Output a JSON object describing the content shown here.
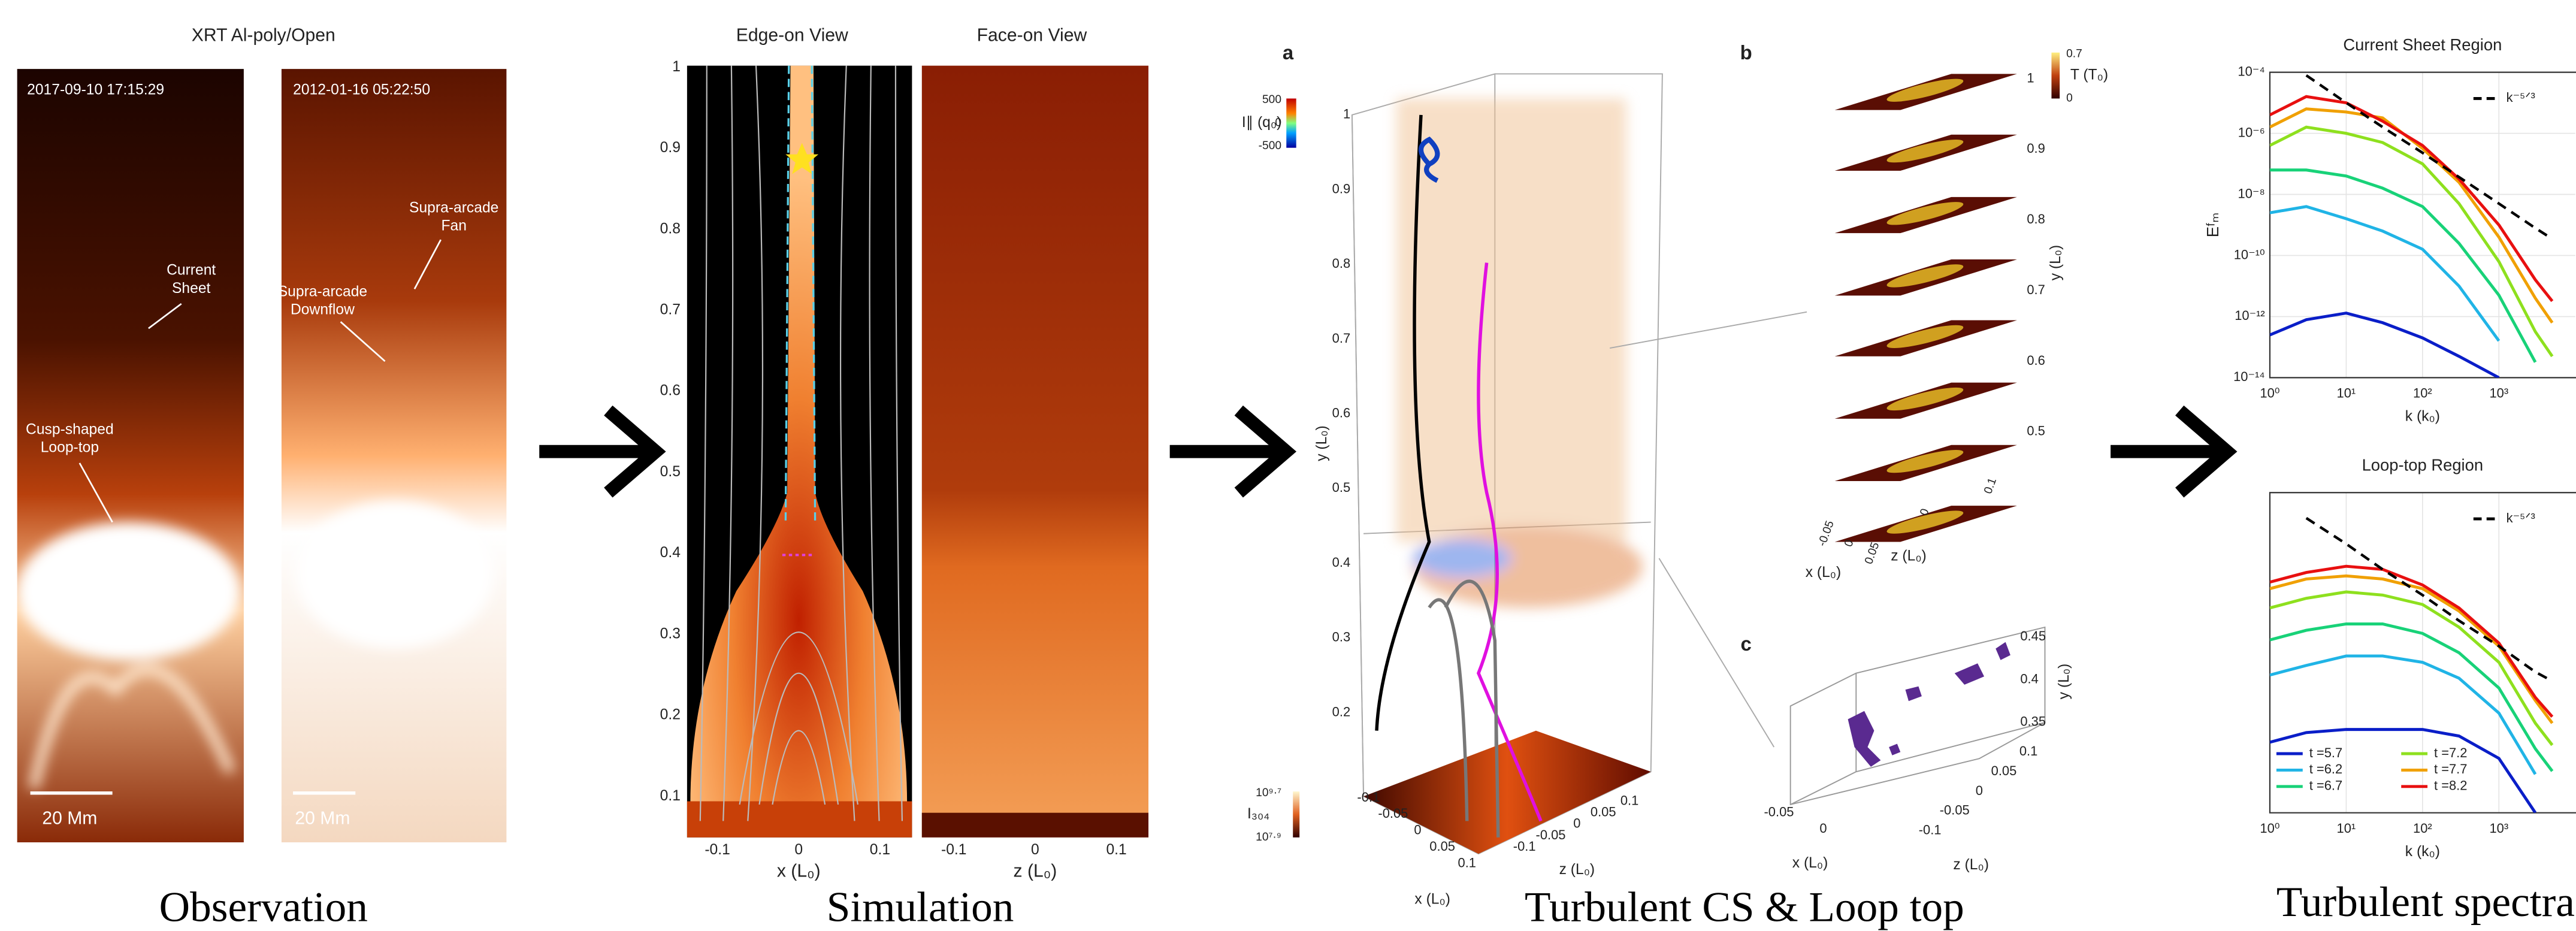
{
  "figure": {
    "observation": {
      "title": "XRT Al-poly/Open",
      "times": [
        "2017-09-10 17:15:29",
        "2012-01-16 05:22:50"
      ],
      "annotations": [
        [
          "Current",
          "Sheet"
        ],
        [
          "Cusp-shaped",
          "Loop-top"
        ],
        [
          "Supra-arcade",
          "Fan"
        ],
        [
          "Supra-arcade",
          "Downflow"
        ]
      ],
      "scale_bars": [
        "20 Mm",
        "20 Mm"
      ],
      "caption": "Observation"
    },
    "simulation": {
      "titles": [
        "Edge-on View",
        "Face-on View"
      ],
      "yticks": [
        0.1,
        0.2,
        0.3,
        0.4,
        0.5,
        0.6,
        0.7,
        0.8,
        0.9,
        1
      ],
      "xticks": [
        -0.1,
        0,
        0.1
      ],
      "xlabels": [
        "x (L₀)",
        "z (L₀)"
      ],
      "caption": "Simulation"
    },
    "turbulent": {
      "panel_labels": [
        "a",
        "b",
        "c"
      ],
      "a": {
        "colorbar_label": "I∥ (q₀)",
        "colorbar_ticks": [
          500,
          0,
          -500
        ],
        "colorbar2_label": "I₃₀₄",
        "colorbar2_ticks": [
          "10⁹·⁷",
          "10⁷·⁹"
        ],
        "yticks": [
          0.2,
          0.3,
          0.4,
          0.5,
          0.6,
          0.7,
          0.8,
          0.9,
          1
        ],
        "ylabel": "y (L₀)",
        "xticks": [
          -0.1,
          -0.05,
          0,
          0.05,
          0.1
        ],
        "xlabel": "x (L₀)",
        "zticks": [
          -0.1,
          -0.05,
          0,
          0.05,
          0.1
        ],
        "zlabel": "z (L₀)"
      },
      "b": {
        "colorbar_label": "T (T₀)",
        "colorbar_ticks": [
          0.7,
          0
        ],
        "yticks": [
          1,
          0.9,
          0.8,
          0.7,
          0.6,
          0.5
        ],
        "ylabel": "y (L₀)",
        "xticks": [
          -0.05,
          0,
          0.05
        ],
        "xlabel": "x (L₀)",
        "zticks": [
          0,
          0.1
        ],
        "zlabel": "z (L₀)"
      },
      "c": {
        "yticks": [
          0.45,
          0.4,
          0.35
        ],
        "ylabel": "y (L₀)",
        "xticks": [
          -0.05,
          0
        ],
        "xlabel": "x (L₀)",
        "zticks": [
          -0.1,
          -0.05,
          0,
          0.05,
          0.1
        ],
        "zlabel": "z (L₀)"
      },
      "caption": "Turbulent CS & Loop top"
    },
    "spectra_caption": "Turbulent spectra"
  },
  "chart_data": [
    {
      "type": "line",
      "title": "Current Sheet Region",
      "xlabel": "k (k₀)",
      "ylabel": "Eᶠₘ",
      "log_x": true,
      "log_y": true,
      "grid": true,
      "x": [
        1,
        3,
        10,
        30,
        100,
        300,
        1000,
        3000,
        5000
      ],
      "xlim": [
        1,
        10000
      ],
      "ylim": [
        1e-14,
        0.0001
      ],
      "xticks": [
        {
          "value": 1,
          "label": "10⁰"
        },
        {
          "value": 10,
          "label": "10¹"
        },
        {
          "value": 100,
          "label": "10²"
        },
        {
          "value": 1000,
          "label": "10³"
        }
      ],
      "yticks": [
        {
          "value": 1e-14,
          "label": "10⁻¹⁴"
        },
        {
          "value": 1e-12,
          "label": "10⁻¹²"
        },
        {
          "value": 1e-10,
          "label": "10⁻¹⁰"
        },
        {
          "value": 1e-08,
          "label": "10⁻⁸"
        },
        {
          "value": 1e-06,
          "label": "10⁻⁶"
        },
        {
          "value": 0.0001,
          "label": "10⁻⁴"
        }
      ],
      "series": [
        {
          "color": "#0a1ec8",
          "values": [
            2.5e-13,
            7.9e-13,
            1.3e-12,
            6.3e-13,
            2e-13,
            5e-14,
            1e-14,
            null,
            null
          ]
        },
        {
          "color": "#20b4e6",
          "values": [
            2.5e-09,
            4e-09,
            1.6e-09,
            6.3e-10,
            1.6e-10,
            1e-11,
            1.6e-13,
            null,
            null
          ]
        },
        {
          "color": "#18d278",
          "values": [
            6.3e-08,
            6.3e-08,
            4e-08,
            1.6e-08,
            4e-09,
            2.5e-10,
            5e-12,
            3.2e-14,
            null
          ]
        },
        {
          "color": "#8ee01e",
          "values": [
            4e-07,
            1.6e-06,
            1e-06,
            5e-07,
            1e-07,
            5e-09,
            6.3e-11,
            3.2e-13,
            5e-14
          ]
        },
        {
          "color": "#f0a000",
          "values": [
            1.6e-06,
            6.3e-06,
            5e-06,
            3.2e-06,
            3.2e-07,
            2.5e-08,
            4e-10,
            4e-12,
            6.3e-13
          ]
        },
        {
          "color": "#e81010",
          "values": [
            4e-06,
            1.6e-05,
            1e-05,
            2.5e-06,
            4e-07,
            3.2e-08,
            1e-09,
            1.6e-11,
            3.2e-12
          ]
        },
        {
          "name": "k⁻⁵ᐟ³",
          "color": "#000000",
          "dash": true,
          "values": [
            null,
            7.9e-05,
            1e-05,
            1.6e-06,
            2.3e-07,
            3.7e-08,
            5e-09,
            7.9e-10,
            3.5e-10
          ]
        }
      ]
    },
    {
      "type": "line",
      "title": "Loop-top Region",
      "xlabel": "k (k₀)",
      "log_x": true,
      "log_y": true,
      "grid": true,
      "legend": "lower left",
      "x": [
        1,
        3,
        10,
        30,
        100,
        300,
        1000,
        3000,
        5000
      ],
      "xlim": [
        1,
        10000
      ],
      "ylim": [
        1e-14,
        0.0001
      ],
      "xticks": [
        {
          "value": 1,
          "label": "10⁰"
        },
        {
          "value": 10,
          "label": "10¹"
        },
        {
          "value": 100,
          "label": "10²"
        },
        {
          "value": 1000,
          "label": "10³"
        }
      ],
      "series": [
        {
          "name": "t =5.7",
          "color": "#0a1ec8",
          "values": [
            1.6e-12,
            3.2e-12,
            4e-12,
            4e-12,
            4e-12,
            2.5e-12,
            5e-13,
            1e-14,
            null
          ]
        },
        {
          "name": "t =6.2",
          "color": "#20b4e6",
          "values": [
            2e-10,
            4e-10,
            7.9e-10,
            7.9e-10,
            5e-10,
            1.6e-10,
            1.3e-11,
            1.6e-13,
            null
          ]
        },
        {
          "name": "t =6.7",
          "color": "#18d278",
          "values": [
            2.5e-09,
            5e-09,
            7.9e-09,
            7.9e-09,
            4e-09,
            1e-09,
            7.9e-11,
            1e-12,
            2e-13
          ]
        },
        {
          "name": "t =7.2",
          "color": "#8ee01e",
          "values": [
            2.5e-08,
            5e-08,
            7.9e-08,
            6.3e-08,
            3.2e-08,
            6.3e-09,
            5e-10,
            6.3e-12,
            1.3e-12
          ]
        },
        {
          "name": "t =7.7",
          "color": "#f0a000",
          "values": [
            1e-07,
            2e-07,
            2.5e-07,
            2e-07,
            1e-07,
            2e-08,
            1.6e-09,
            3.2e-11,
            6.3e-12
          ]
        },
        {
          "name": "t =8.2",
          "color": "#e81010",
          "values": [
            1.6e-07,
            3.2e-07,
            5e-07,
            4e-07,
            1.3e-07,
            2.5e-08,
            2e-09,
            4e-11,
            1e-11
          ]
        },
        {
          "name": "k⁻⁵ᐟ³",
          "color": "#000000",
          "dash": true,
          "values": [
            null,
            1.6e-05,
            2.5e-06,
            4e-07,
            6.3e-08,
            1e-08,
            1.6e-09,
            2.5e-10,
            1.3e-10
          ]
        }
      ]
    }
  ]
}
